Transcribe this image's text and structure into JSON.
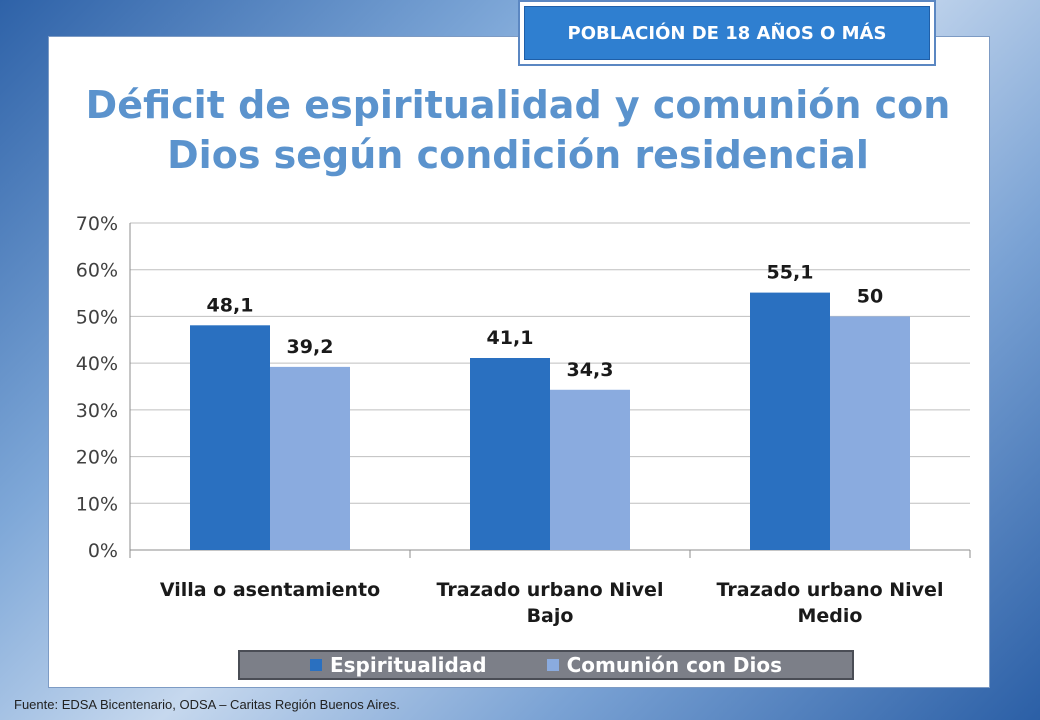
{
  "badge": "POBLACIÓN DE 18 AÑOS O MÁS",
  "source": "Fuente:  EDSA Bicentenario,  ODSA – Caritas Región Buenos Aires.",
  "chart_data": {
    "type": "bar",
    "title": "Déficit de espiritualidad y comunión con Dios según condición residencial",
    "categories": [
      [
        "Villa o asentamiento"
      ],
      [
        "Trazado urbano Nivel",
        "Bajo"
      ],
      [
        "Trazado urbano Nivel",
        "Medio"
      ]
    ],
    "series": [
      {
        "name": "Espiritualidad",
        "values": [
          48.1,
          41.1,
          55.1
        ],
        "labels": [
          "48,1",
          "41,1",
          "55,1"
        ],
        "color": "#2a70c0"
      },
      {
        "name": "Comunión con Dios",
        "values": [
          39.2,
          34.3,
          50
        ],
        "labels": [
          "39,2",
          "34,3",
          "50"
        ],
        "color": "#8aabdf"
      }
    ],
    "ylim": [
      0,
      70
    ],
    "yticks": [
      "0%",
      "10%",
      "20%",
      "30%",
      "40%",
      "50%",
      "60%",
      "70%"
    ],
    "grid": true,
    "legend": "bottom"
  }
}
